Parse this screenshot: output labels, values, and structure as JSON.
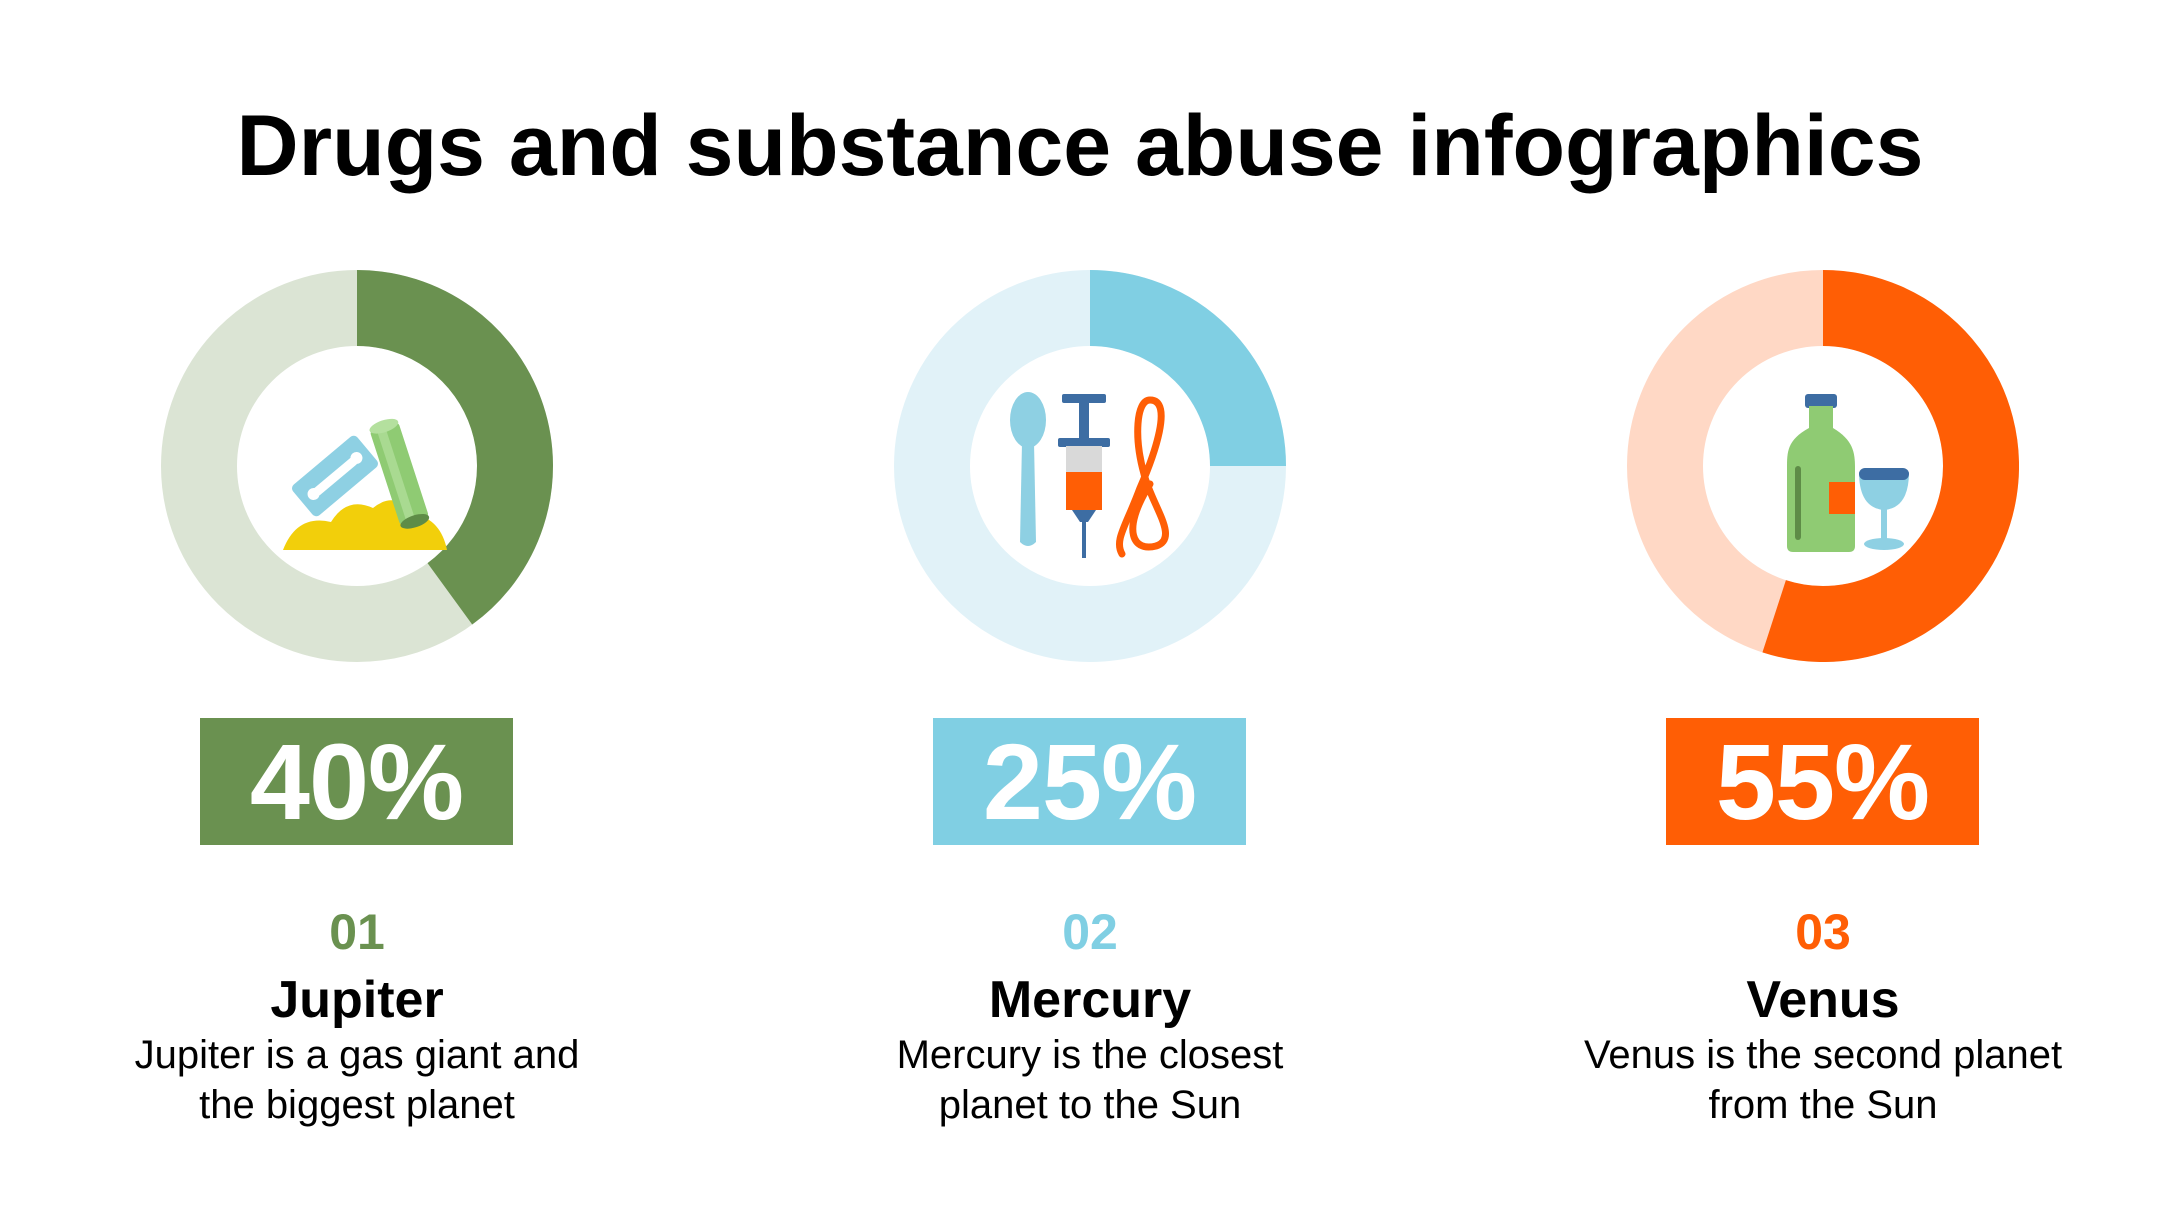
{
  "title": "Drugs and substance abuse infographics",
  "chart_data": {
    "type": "pie",
    "variant": "donut",
    "charts": [
      {
        "number": "01",
        "name": "Jupiter",
        "description": "Jupiter is a gas giant and the biggest planet",
        "value": 40,
        "label": "40%",
        "color": "#6A9150",
        "track_color": "#DBE4D4",
        "icon": "razor-powder-icon"
      },
      {
        "number": "02",
        "name": "Mercury",
        "description": "Mercury is the closest planet to the Sun",
        "value": 25,
        "label": "25%",
        "color": "#80CFE3",
        "track_color": "#E1F2F8",
        "icon": "syringe-spoon-icon"
      },
      {
        "number": "03",
        "name": "Venus",
        "description": "Venus is the second planet from the Sun",
        "value": 55,
        "label": "55%",
        "color": "#FF5E05",
        "track_color": "#FFD8C5",
        "icon": "bottle-glass-icon"
      }
    ]
  }
}
